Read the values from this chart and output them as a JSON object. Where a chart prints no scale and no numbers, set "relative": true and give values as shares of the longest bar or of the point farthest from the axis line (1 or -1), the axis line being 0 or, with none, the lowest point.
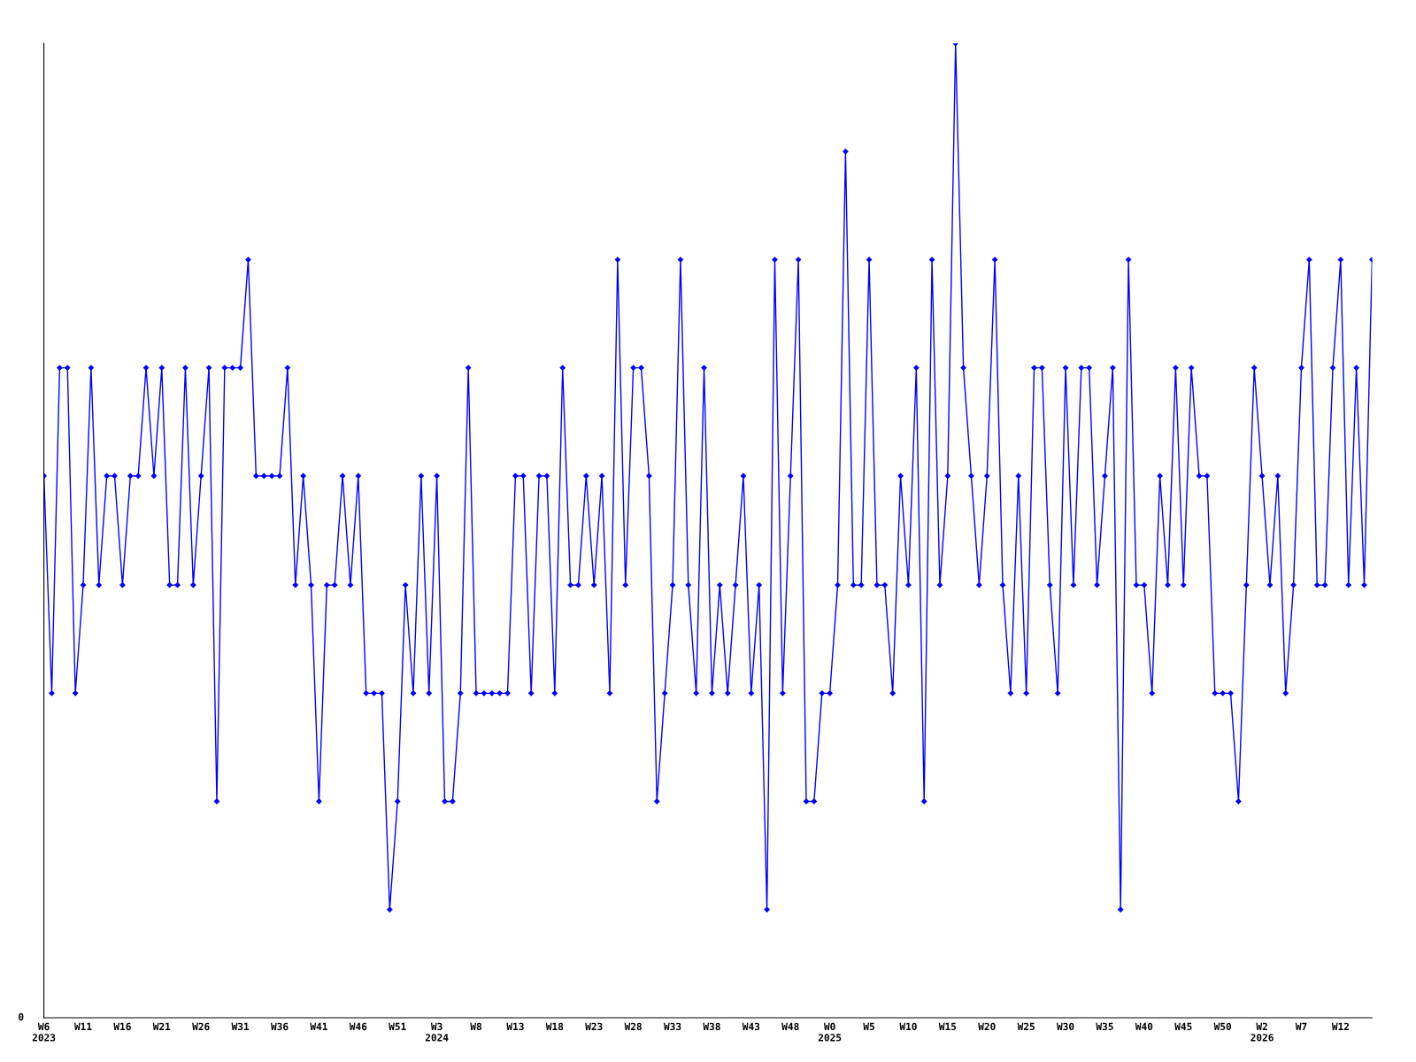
{
  "chart_data": {
    "type": "line",
    "relative": true,
    "categories": [
      "W6\n2023",
      null,
      null,
      null,
      null,
      "W11",
      null,
      null,
      null,
      null,
      "W16",
      null,
      null,
      null,
      null,
      "W21",
      null,
      null,
      null,
      null,
      "W26",
      null,
      null,
      null,
      null,
      "W31",
      null,
      null,
      null,
      null,
      "W36",
      null,
      null,
      null,
      null,
      "W41",
      null,
      null,
      null,
      null,
      "W46",
      null,
      null,
      null,
      null,
      "W51",
      null,
      null,
      null,
      null,
      "W3\n2024",
      null,
      null,
      null,
      null,
      "W8",
      null,
      null,
      null,
      null,
      "W13",
      null,
      null,
      null,
      null,
      "W18",
      null,
      null,
      null,
      null,
      "W23",
      null,
      null,
      null,
      null,
      "W28",
      null,
      null,
      null,
      null,
      "W33",
      null,
      null,
      null,
      null,
      "W38",
      null,
      null,
      null,
      null,
      "W43",
      null,
      null,
      null,
      null,
      "W48",
      null,
      null,
      null,
      null,
      "W0\n2025",
      null,
      null,
      null,
      null,
      "W5",
      null,
      null,
      null,
      null,
      "W10",
      null,
      null,
      null,
      null,
      "W15",
      null,
      null,
      null,
      null,
      "W20",
      null,
      null,
      null,
      null,
      "W25",
      null,
      null,
      null,
      null,
      "W30",
      null,
      null,
      null,
      null,
      "W35",
      null,
      null,
      null,
      null,
      "W40",
      null,
      null,
      null,
      null,
      "W45",
      null,
      null,
      null,
      null,
      "W50",
      null,
      null,
      null,
      null,
      "W2\n2026",
      null,
      null,
      null,
      null,
      "W7",
      null,
      null,
      null,
      null,
      "W12",
      null,
      null,
      null,
      null
    ],
    "series": [
      {
        "color": "#0000ff",
        "values": [
          0.556,
          0.333,
          0.667,
          0.667,
          0.333,
          0.444,
          0.667,
          0.444,
          0.556,
          0.556,
          0.444,
          0.556,
          0.556,
          0.667,
          0.556,
          0.667,
          0.444,
          0.444,
          0.667,
          0.444,
          0.556,
          0.667,
          0.222,
          0.667,
          0.667,
          0.667,
          0.778,
          0.556,
          0.556,
          0.556,
          0.556,
          0.667,
          0.444,
          0.556,
          0.444,
          0.222,
          0.444,
          0.444,
          0.556,
          0.444,
          0.556,
          0.333,
          0.333,
          0.333,
          0.111,
          0.222,
          0.444,
          0.333,
          0.556,
          0.333,
          0.556,
          0.222,
          0.222,
          0.333,
          0.667,
          0.333,
          0.333,
          0.333,
          0.333,
          0.333,
          0.556,
          0.556,
          0.333,
          0.556,
          0.556,
          0.333,
          0.667,
          0.444,
          0.444,
          0.556,
          0.444,
          0.556,
          0.333,
          0.778,
          0.444,
          0.667,
          0.667,
          0.556,
          0.222,
          0.333,
          0.444,
          0.778,
          0.444,
          0.333,
          0.667,
          0.333,
          0.444,
          0.333,
          0.444,
          0.556,
          0.333,
          0.444,
          0.111,
          0.778,
          0.333,
          0.556,
          0.778,
          0.222,
          0.222,
          0.333,
          0.333,
          0.444,
          0.889,
          0.444,
          0.444,
          0.778,
          0.444,
          0.444,
          0.333,
          0.556,
          0.444,
          0.667,
          0.222,
          0.778,
          0.444,
          0.556,
          1,
          0.667,
          0.556,
          0.444,
          0.556,
          0.778,
          0.444,
          0.333,
          0.556,
          0.333,
          0.667,
          0.667,
          0.444,
          0.333,
          0.667,
          0.444,
          0.667,
          0.667,
          0.444,
          0.556,
          0.667,
          0.111,
          0.778,
          0.444,
          0.444,
          0.333,
          0.556,
          0.444,
          0.667,
          0.444,
          0.667,
          0.556,
          0.556,
          0.333,
          0.333,
          0.333,
          0.222,
          0.444,
          0.667,
          0.556,
          0.444,
          0.556,
          0.333,
          0.444,
          0.667,
          0.778,
          0.444,
          0.444,
          0.667,
          0.778,
          0.444,
          0.667,
          0.444,
          0.778
        ]
      }
    ],
    "marker": "diamond",
    "line_style": "solid",
    "grid": false,
    "legend": false,
    "annotations": [
      "0"
    ]
  }
}
